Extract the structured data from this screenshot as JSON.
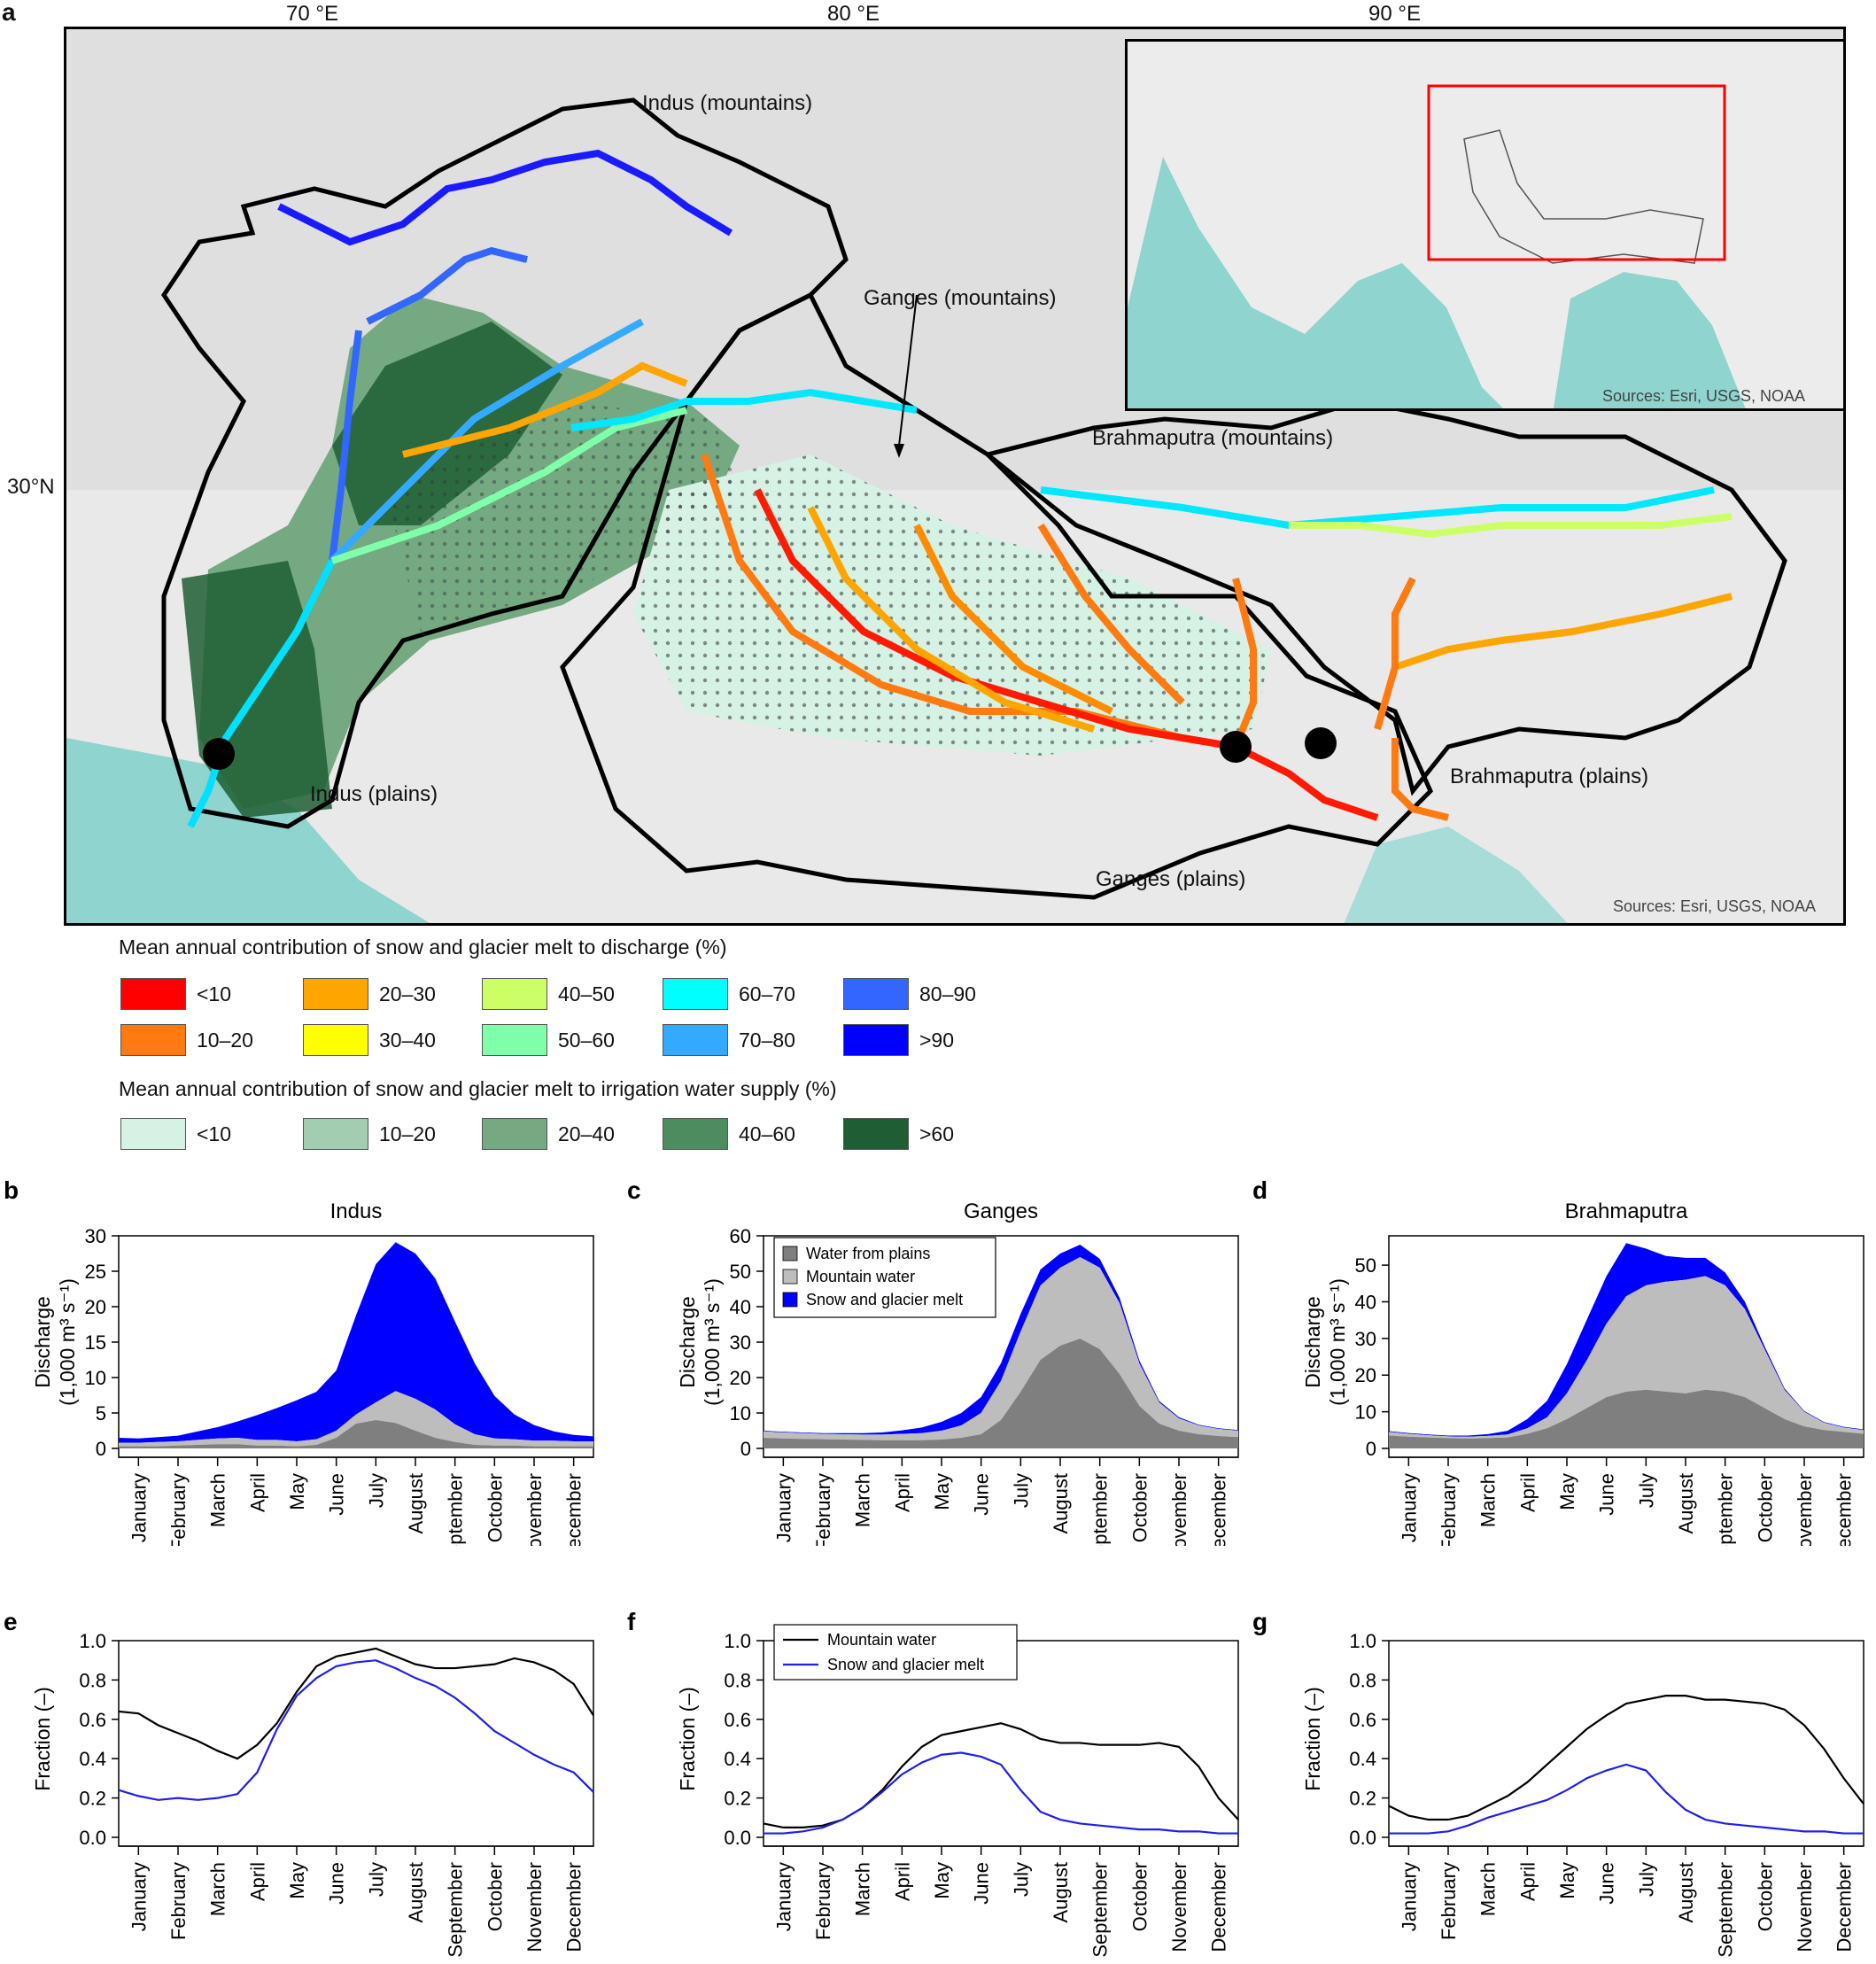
{
  "colors": {
    "blue": "#0000ff",
    "snow_fill": "#0000ff",
    "mountain_fill": "#bdbdbd",
    "plains_fill": "#7f7f7f",
    "mountain_line": "#000000",
    "snow_line": "#1f1fe6"
  },
  "map": {
    "panel_letter": "a",
    "lon_labels": [
      "70 °E",
      "80 °E",
      "90 °E"
    ],
    "lat_label": "30°N",
    "labels": {
      "indus_mountains": "Indus (mountains)",
      "ganges_mountains": "Ganges (mountains)",
      "brahmaputra_mountains": "Brahmaputra (mountains)",
      "indus_plains": "Indus (plains)",
      "ganges_plains": "Ganges (plains)",
      "brahmaputra_plains": "Brahmaputra (plains)"
    },
    "sources": "Sources: Esri, USGS, NOAA",
    "inset_sources": "Sources: Esri, USGS, NOAA"
  },
  "legend_discharge": {
    "title": "Mean annual contribution of snow and glacier melt to discharge (%)",
    "items": [
      {
        "label": "<10",
        "color": "#ff0000"
      },
      {
        "label": "10–20",
        "color": "#ff7a10"
      },
      {
        "label": "20–30",
        "color": "#ffa500"
      },
      {
        "label": "30–40",
        "color": "#ffff00"
      },
      {
        "label": "40–50",
        "color": "#ccff66"
      },
      {
        "label": "50–60",
        "color": "#80ffaa"
      },
      {
        "label": "60–70",
        "color": "#00ffff"
      },
      {
        "label": "70–80",
        "color": "#33aaff"
      },
      {
        "label": "80–90",
        "color": "#3366ff"
      },
      {
        "label": ">90",
        "color": "#0000ff"
      }
    ]
  },
  "legend_irrigation": {
    "title": "Mean annual contribution of snow and glacier melt to irrigation water supply (%)",
    "items": [
      {
        "label": "<10",
        "color": "#d6f2e4"
      },
      {
        "label": "10–20",
        "color": "#a3cdb0"
      },
      {
        "label": "20–40",
        "color": "#74a982"
      },
      {
        "label": "40–60",
        "color": "#4d8c5e"
      },
      {
        "label": ">60",
        "color": "#1f5e34"
      }
    ]
  },
  "months": [
    "January",
    "February",
    "March",
    "April",
    "May",
    "June",
    "July",
    "August",
    "September",
    "October",
    "November",
    "December"
  ],
  "chart_data": [
    {
      "panel": "b",
      "title": "Indus",
      "type": "area",
      "ylabel_line1": "Discharge",
      "ylabel_line2": "(1,000 m³ s⁻¹)",
      "ylim": [
        0,
        30
      ],
      "yticks": [
        0,
        5,
        10,
        15,
        20,
        25,
        30
      ],
      "x": [
        0,
        0.5,
        1,
        1.5,
        2,
        2.5,
        3,
        3.5,
        4,
        4.5,
        5,
        5.5,
        6,
        6.5,
        7,
        7.5,
        8,
        8.5,
        9,
        9.5,
        10,
        10.5,
        11,
        11.5,
        12
      ],
      "series": [
        {
          "name": "Water from plains",
          "values": [
            0.3,
            0.3,
            0.3,
            0.4,
            0.5,
            0.6,
            0.6,
            0.4,
            0.4,
            0.3,
            0.5,
            1.5,
            3.5,
            4.0,
            3.6,
            2.5,
            1.5,
            0.9,
            0.5,
            0.4,
            0.4,
            0.3,
            0.3,
            0.3,
            0.3
          ]
        },
        {
          "name": "Mountain water",
          "values": [
            0.5,
            0.5,
            0.6,
            0.6,
            0.7,
            0.8,
            0.9,
            0.8,
            0.8,
            0.7,
            0.8,
            1.0,
            1.3,
            2.5,
            4.5,
            4.5,
            4.0,
            2.5,
            1.5,
            1.0,
            0.9,
            0.8,
            0.8,
            0.7,
            0.7
          ]
        },
        {
          "name": "Snow and glacier melt",
          "values": [
            0.7,
            0.6,
            0.7,
            0.8,
            1.2,
            1.6,
            2.3,
            3.5,
            4.5,
            5.8,
            6.7,
            8.5,
            14.0,
            19.5,
            21.0,
            20.5,
            18.5,
            14.5,
            10.0,
            6.0,
            3.5,
            2.2,
            1.3,
            0.9,
            0.7
          ]
        }
      ]
    },
    {
      "panel": "c",
      "title": "Ganges",
      "type": "area",
      "ylabel_line1": "Discharge",
      "ylabel_line2": "(1,000 m³ s⁻¹)",
      "ylim": [
        0,
        60
      ],
      "yticks": [
        0,
        10,
        20,
        30,
        40,
        50,
        60
      ],
      "legend": [
        "Water from plains",
        "Mountain water",
        "Snow and glacier melt"
      ],
      "x": [
        0,
        0.5,
        1,
        1.5,
        2,
        2.5,
        3,
        3.5,
        4,
        4.5,
        5,
        5.5,
        6,
        6.5,
        7,
        7.5,
        8,
        8.5,
        9,
        9.5,
        10,
        10.5,
        11,
        11.5,
        12
      ],
      "series": [
        {
          "name": "Water from plains",
          "values": [
            3.0,
            2.8,
            2.7,
            2.6,
            2.5,
            2.4,
            2.3,
            2.3,
            2.3,
            2.5,
            3.0,
            4.0,
            8.0,
            16.0,
            25.0,
            29.0,
            31.0,
            28.0,
            21.0,
            12.0,
            7.0,
            5.0,
            4.0,
            3.5,
            3.2
          ]
        },
        {
          "name": "Mountain water",
          "values": [
            1.8,
            1.7,
            1.6,
            1.5,
            1.5,
            1.5,
            1.6,
            1.8,
            2.0,
            2.5,
            3.5,
            6.0,
            11.0,
            17.0,
            21.0,
            22.0,
            23.0,
            23.0,
            20.0,
            12.0,
            6.0,
            3.5,
            2.5,
            2.0,
            1.8
          ]
        },
        {
          "name": "Snow and glacier melt",
          "values": [
            0.2,
            0.2,
            0.2,
            0.2,
            0.3,
            0.4,
            0.6,
            1.0,
            1.6,
            2.5,
            3.5,
            4.5,
            5.0,
            5.0,
            4.5,
            4.0,
            3.5,
            2.5,
            1.5,
            0.8,
            0.4,
            0.3,
            0.2,
            0.2,
            0.2
          ]
        }
      ]
    },
    {
      "panel": "d",
      "title": "Brahmaputra",
      "type": "area",
      "ylabel_line1": "Discharge",
      "ylabel_line2": "(1,000 m³ s⁻¹)",
      "ylim": [
        0,
        58
      ],
      "yticks": [
        0,
        10,
        20,
        30,
        40,
        50
      ],
      "x": [
        0,
        0.5,
        1,
        1.5,
        2,
        2.5,
        3,
        3.5,
        4,
        4.5,
        5,
        5.5,
        6,
        6.5,
        7,
        7.5,
        8,
        8.5,
        9,
        9.5,
        10,
        10.5,
        11,
        11.5,
        12
      ],
      "series": [
        {
          "name": "Water from plains",
          "values": [
            3.5,
            3.2,
            3.0,
            2.8,
            2.7,
            2.8,
            3.0,
            4.0,
            5.5,
            8.0,
            11.0,
            14.0,
            15.5,
            16.0,
            15.5,
            15.0,
            16.0,
            15.5,
            14.0,
            11.0,
            8.0,
            6.0,
            5.0,
            4.5,
            4.0
          ]
        },
        {
          "name": "Mountain water",
          "values": [
            1.0,
            0.8,
            0.6,
            0.5,
            0.5,
            0.6,
            0.8,
            1.5,
            3.0,
            7.0,
            13.0,
            20.0,
            26.0,
            28.5,
            30.0,
            31.0,
            31.0,
            29.0,
            24.0,
            16.0,
            8.0,
            4.0,
            2.0,
            1.2,
            1.0
          ]
        },
        {
          "name": "Snow and glacier melt",
          "values": [
            0.2,
            0.2,
            0.2,
            0.2,
            0.3,
            0.5,
            1.0,
            2.5,
            4.5,
            8.0,
            11.0,
            13.0,
            14.5,
            10.0,
            7.0,
            6.0,
            5.0,
            3.5,
            2.0,
            0.8,
            0.4,
            0.2,
            0.2,
            0.2,
            0.2
          ]
        }
      ]
    },
    {
      "panel": "e",
      "title": "",
      "type": "line",
      "ylabel": "Fraction (–)",
      "ylim": [
        0,
        1
      ],
      "yticks": [
        "0.0",
        "0.2",
        "0.4",
        "0.6",
        "0.8",
        "1.0"
      ],
      "x": [
        0,
        0.5,
        1,
        1.5,
        2,
        2.5,
        3,
        3.5,
        4,
        4.5,
        5,
        5.5,
        6,
        6.5,
        7,
        7.5,
        8,
        8.5,
        9,
        9.5,
        10,
        10.5,
        11,
        11.5,
        12
      ],
      "series": [
        {
          "name": "Mountain water",
          "values": [
            0.64,
            0.63,
            0.57,
            0.53,
            0.49,
            0.44,
            0.4,
            0.47,
            0.58,
            0.74,
            0.87,
            0.92,
            0.94,
            0.96,
            0.92,
            0.88,
            0.86,
            0.86,
            0.87,
            0.88,
            0.91,
            0.89,
            0.85,
            0.78,
            0.62
          ]
        },
        {
          "name": "Snow and glacier melt",
          "values": [
            0.24,
            0.21,
            0.19,
            0.2,
            0.19,
            0.2,
            0.22,
            0.33,
            0.55,
            0.72,
            0.81,
            0.87,
            0.89,
            0.9,
            0.86,
            0.81,
            0.77,
            0.71,
            0.63,
            0.54,
            0.48,
            0.42,
            0.37,
            0.33,
            0.23
          ]
        }
      ]
    },
    {
      "panel": "f",
      "title": "",
      "type": "line",
      "ylabel": "Fraction (–)",
      "ylim": [
        0,
        1
      ],
      "yticks": [
        "0.0",
        "0.2",
        "0.4",
        "0.6",
        "0.8",
        "1.0"
      ],
      "legend": [
        "Mountain water",
        "Snow and glacier melt"
      ],
      "x": [
        0,
        0.5,
        1,
        1.5,
        2,
        2.5,
        3,
        3.5,
        4,
        4.5,
        5,
        5.5,
        6,
        6.5,
        7,
        7.5,
        8,
        8.5,
        9,
        9.5,
        10,
        10.5,
        11,
        11.5,
        12
      ],
      "series": [
        {
          "name": "Mountain water",
          "values": [
            0.07,
            0.05,
            0.05,
            0.06,
            0.09,
            0.15,
            0.24,
            0.36,
            0.46,
            0.52,
            0.54,
            0.56,
            0.58,
            0.55,
            0.5,
            0.48,
            0.48,
            0.47,
            0.47,
            0.47,
            0.48,
            0.46,
            0.36,
            0.2,
            0.09
          ]
        },
        {
          "name": "Snow and glacier melt",
          "values": [
            0.02,
            0.02,
            0.03,
            0.05,
            0.09,
            0.15,
            0.23,
            0.32,
            0.38,
            0.42,
            0.43,
            0.41,
            0.37,
            0.24,
            0.13,
            0.09,
            0.07,
            0.06,
            0.05,
            0.04,
            0.04,
            0.03,
            0.03,
            0.02,
            0.02
          ]
        }
      ]
    },
    {
      "panel": "g",
      "title": "",
      "type": "line",
      "ylabel": "Fraction (–)",
      "ylim": [
        0,
        1
      ],
      "yticks": [
        "0.0",
        "0.2",
        "0.4",
        "0.6",
        "0.8",
        "1.0"
      ],
      "x": [
        0,
        0.5,
        1,
        1.5,
        2,
        2.5,
        3,
        3.5,
        4,
        4.5,
        5,
        5.5,
        6,
        6.5,
        7,
        7.5,
        8,
        8.5,
        9,
        9.5,
        10,
        10.5,
        11,
        11.5,
        12
      ],
      "series": [
        {
          "name": "Mountain water",
          "values": [
            0.16,
            0.11,
            0.09,
            0.09,
            0.11,
            0.16,
            0.21,
            0.28,
            0.37,
            0.46,
            0.55,
            0.62,
            0.68,
            0.7,
            0.72,
            0.72,
            0.7,
            0.7,
            0.69,
            0.68,
            0.65,
            0.57,
            0.45,
            0.3,
            0.17
          ]
        },
        {
          "name": "Snow and glacier melt",
          "values": [
            0.02,
            0.02,
            0.02,
            0.03,
            0.06,
            0.1,
            0.13,
            0.16,
            0.19,
            0.24,
            0.3,
            0.34,
            0.37,
            0.34,
            0.23,
            0.14,
            0.09,
            0.07,
            0.06,
            0.05,
            0.04,
            0.03,
            0.03,
            0.02,
            0.02
          ]
        }
      ]
    }
  ]
}
